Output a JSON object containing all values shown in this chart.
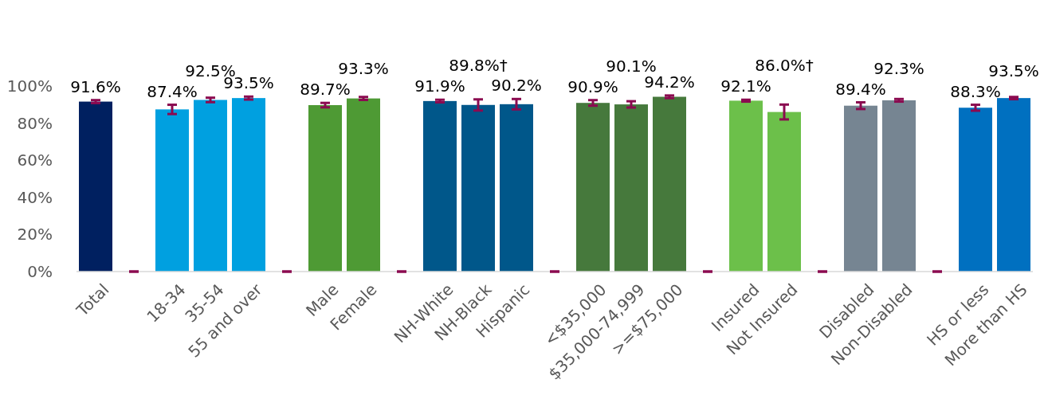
{
  "chart_data": {
    "type": "bar",
    "categories": [
      "Total",
      null,
      "18-34",
      "35-54",
      "55 and over",
      null,
      "Male",
      "Female",
      null,
      "NH-White",
      "NH-Black",
      "Hispanic",
      null,
      "<$35,000",
      "$35,000-74,999",
      ">=$75,000",
      null,
      "Insured",
      "Not Insured",
      null,
      "Disabled",
      "Non-Disabled",
      null,
      "HS or less",
      "More than HS"
    ],
    "values": [
      91.6,
      0,
      87.4,
      92.5,
      93.5,
      0,
      89.7,
      93.3,
      0,
      91.9,
      89.8,
      90.2,
      0,
      90.9,
      90.1,
      94.2,
      0,
      92.1,
      86.0,
      0,
      89.4,
      92.3,
      0,
      88.3,
      93.5
    ],
    "colors": [
      "#002060",
      "#8b0a50",
      "#00a0e0",
      "#00a0e0",
      "#00a0e0",
      "#8b0a50",
      "#4e9a34",
      "#4e9a34",
      "#8b0a50",
      "#00578a",
      "#00578a",
      "#00578a",
      "#8b0a50",
      "#46793c",
      "#46793c",
      "#46793c",
      "#8b0a50",
      "#6cc04a",
      "#6cc04a",
      "#8b0a50",
      "#768592",
      "#768592",
      "#8b0a50",
      "#0070c0",
      "#0070c0"
    ],
    "errors": [
      0.8,
      0,
      2.5,
      1.2,
      0.8,
      0,
      1.2,
      0.8,
      0,
      0.7,
      3,
      2.8,
      0,
      1.5,
      1.7,
      0.7,
      0,
      0.5,
      4,
      0,
      1.8,
      0.7,
      0,
      1.6,
      0.6
    ],
    "value_labels": [
      "91.6%",
      null,
      "87.4%",
      "92.5%",
      "93.5%",
      null,
      "89.7%",
      "93.3%",
      null,
      "91.9%",
      "89.8%†",
      "90.2%",
      null,
      "90.9%",
      "90.1%",
      "94.2%",
      null,
      "92.1%",
      "86.0%†",
      null,
      "89.4%",
      "92.3%",
      null,
      "88.3%",
      "93.5%"
    ],
    "ylim": [
      0,
      100
    ],
    "yticks": [
      {
        "value": 0,
        "label": "0%"
      },
      {
        "value": 20,
        "label": "20%"
      },
      {
        "value": 40,
        "label": "40%"
      },
      {
        "value": 60,
        "label": "60%"
      },
      {
        "value": 80,
        "label": "80%"
      },
      {
        "value": 100,
        "label": "100%"
      }
    ],
    "grid": false
  }
}
